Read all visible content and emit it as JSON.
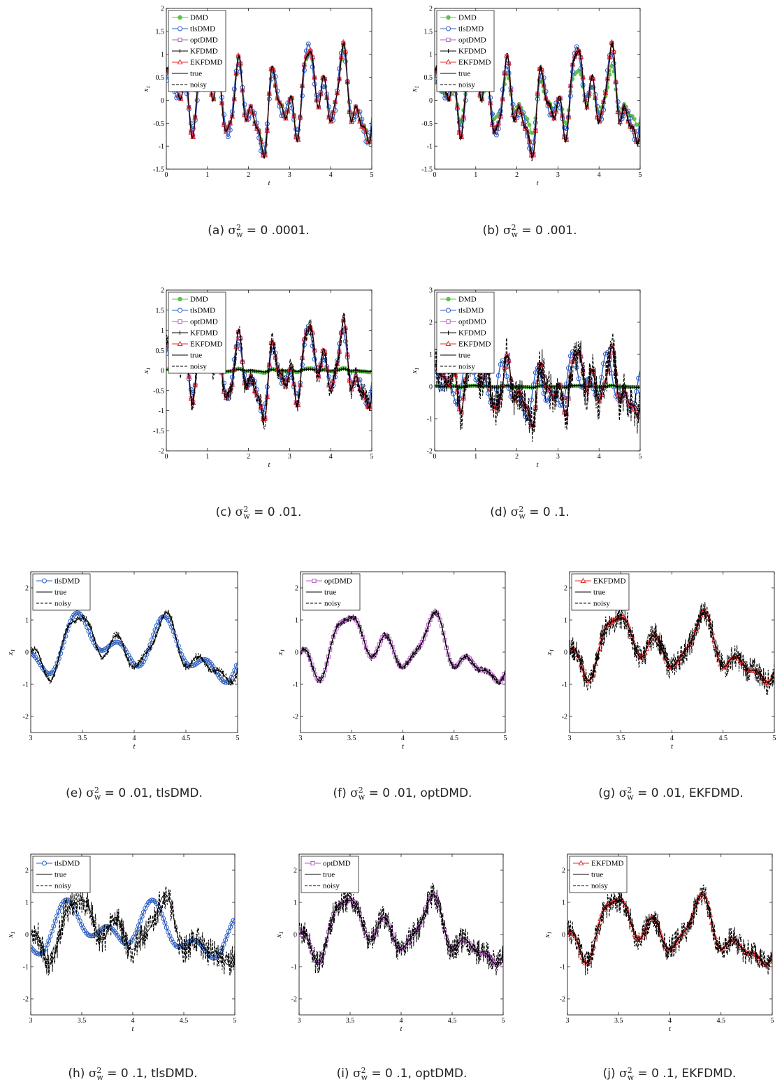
{
  "colors": {
    "DMD": "#5cc24a",
    "tlsDMD": "#2e5fbf",
    "optDMD": "#b05cc0",
    "KFDMD": "#000000",
    "EKFDMD": "#e52b2b",
    "true": "#000000",
    "noisy": "#000000"
  },
  "legend_labels": {
    "DMD": "DMD",
    "tlsDMD": "tlsDMD",
    "optDMD": "optDMD",
    "KFDMD": "KFDMD",
    "EKFDMD": "EKFDMD",
    "true": "true",
    "noisy": "noisy"
  },
  "chart_data": [
    {
      "id": "a",
      "type": "line",
      "caption": {
        "prefix": "(a) ",
        "value": " = 0 .0001.",
        "suffix": ""
      },
      "xlabel": "t",
      "ylabel": "x1",
      "xlim": [
        0,
        5
      ],
      "ylim": [
        -1.5,
        2
      ],
      "xticks": [
        0,
        1,
        2,
        3,
        4,
        5
      ],
      "yticks": [
        -1.5,
        -1,
        -0.5,
        0,
        0.5,
        1,
        1.5,
        2
      ],
      "legend": [
        "DMD",
        "tlsDMD",
        "optDMD",
        "KFDMD",
        "EKFDMD",
        "true",
        "noisy"
      ],
      "legend_position": "top-left",
      "noise": 0.03,
      "dmd_amp": 0.95,
      "tls_amp": 1.0,
      "tls_phase": 0
    },
    {
      "id": "b",
      "type": "line",
      "caption": {
        "prefix": "(b) ",
        "value": " = 0 .001.",
        "suffix": ""
      },
      "xlabel": "t",
      "ylabel": "x1",
      "xlim": [
        0,
        5
      ],
      "ylim": [
        -1.5,
        2
      ],
      "xticks": [
        0,
        1,
        2,
        3,
        4,
        5
      ],
      "yticks": [
        -1.5,
        -1,
        -0.5,
        0,
        0.5,
        1,
        1.5,
        2
      ],
      "legend": [
        "DMD",
        "tlsDMD",
        "optDMD",
        "KFDMD",
        "EKFDMD",
        "true",
        "noisy"
      ],
      "legend_position": "top-left",
      "noise": 0.1,
      "dmd_amp": 0.6,
      "tls_amp": 0.95,
      "tls_phase": 0
    },
    {
      "id": "c",
      "type": "line",
      "caption": {
        "prefix": "(c) ",
        "value": " = 0 .01.",
        "suffix": ""
      },
      "xlabel": "t",
      "ylabel": "x1",
      "xlim": [
        0,
        5
      ],
      "ylim": [
        -2,
        2
      ],
      "xticks": [
        0,
        1,
        2,
        3,
        4,
        5
      ],
      "yticks": [
        -2,
        -1.5,
        -1,
        -0.5,
        0,
        0.5,
        1,
        1.5,
        2
      ],
      "legend": [
        "DMD",
        "tlsDMD",
        "optDMD",
        "KFDMD",
        "EKFDMD",
        "true",
        "noisy"
      ],
      "legend_position": "top-left",
      "noise": 0.25,
      "dmd_amp": 0.05,
      "tls_amp": 0.9,
      "tls_phase": 0.05
    },
    {
      "id": "d",
      "type": "line",
      "caption": {
        "prefix": "(d) ",
        "value": " = 0 .1.",
        "suffix": ""
      },
      "xlabel": "t",
      "ylabel": "x1",
      "xlim": [
        0,
        5
      ],
      "ylim": [
        -2,
        3
      ],
      "xticks": [
        0,
        1,
        2,
        3,
        4,
        5
      ],
      "yticks": [
        -2,
        -1,
        0,
        1,
        2,
        3
      ],
      "legend": [
        "DMD",
        "tlsDMD",
        "optDMD",
        "KFDMD",
        "EKFDMD",
        "true",
        "noisy"
      ],
      "legend_position": "top-left",
      "noise": 0.6,
      "dmd_amp": 0.02,
      "tls_amp": 0.9,
      "tls_phase": 0.9
    },
    {
      "id": "e",
      "type": "line",
      "caption": {
        "prefix": "(e) ",
        "value": " = 0 .01, tlsDMD.",
        "suffix": ""
      },
      "xlabel": "t",
      "ylabel": "x1",
      "xlim": [
        3,
        5
      ],
      "ylim": [
        -2.5,
        2.5
      ],
      "xticks": [
        3,
        3.5,
        4,
        4.5,
        5
      ],
      "yticks": [
        -2,
        -1,
        0,
        1,
        2
      ],
      "legend": [
        "tlsDMD",
        "true",
        "noisy"
      ],
      "legend_position": "top-left",
      "noise": 0.12,
      "tls_amp": 1.0,
      "tls_phase": 0.05
    },
    {
      "id": "f",
      "type": "line",
      "caption": {
        "prefix": "(f) ",
        "value": " = 0 .01, optDMD.",
        "suffix": ""
      },
      "xlabel": "t",
      "ylabel": "x1",
      "xlim": [
        3,
        5
      ],
      "ylim": [
        -2.5,
        2.5
      ],
      "xticks": [
        3,
        3.5,
        4,
        4.5,
        5
      ],
      "yticks": [
        -2,
        -1,
        0,
        1,
        2
      ],
      "legend": [
        "optDMD",
        "true",
        "noisy"
      ],
      "legend_position": "top-left",
      "noise": 0.12
    },
    {
      "id": "g",
      "type": "line",
      "caption": {
        "prefix": "(g) ",
        "value": " = 0 .01, EKFDMD.",
        "suffix": ""
      },
      "xlabel": "t",
      "ylabel": "x1",
      "xlim": [
        3,
        5
      ],
      "ylim": [
        -2.5,
        2.5
      ],
      "xticks": [
        3,
        3.5,
        4,
        4.5,
        5
      ],
      "yticks": [
        -2,
        -1,
        0,
        1,
        2
      ],
      "legend": [
        "EKFDMD",
        "true",
        "noisy"
      ],
      "legend_position": "top-left",
      "noise": 0.4
    },
    {
      "id": "h",
      "type": "line",
      "caption": {
        "prefix": "(h) ",
        "value": " = 0 .1, tlsDMD.",
        "suffix": ""
      },
      "xlabel": "t",
      "ylabel": "x1",
      "xlim": [
        3,
        5
      ],
      "ylim": [
        -2.5,
        2.5
      ],
      "xticks": [
        3,
        3.5,
        4,
        4.5,
        5
      ],
      "yticks": [
        -2,
        -1,
        0,
        1,
        2
      ],
      "legend": [
        "tlsDMD",
        "true",
        "noisy"
      ],
      "legend_position": "top-left",
      "noise": 0.45,
      "tls_amp": 0.9,
      "tls_phase": 0.9
    },
    {
      "id": "i",
      "type": "line",
      "caption": {
        "prefix": "(i) ",
        "value": " = 0 .1, optDMD.",
        "suffix": ""
      },
      "xlabel": "t",
      "ylabel": "x1",
      "xlim": [
        3,
        5
      ],
      "ylim": [
        -2.5,
        2.5
      ],
      "xticks": [
        3,
        3.5,
        4,
        4.5,
        5
      ],
      "yticks": [
        -2,
        -1,
        0,
        1,
        2
      ],
      "legend": [
        "optDMD",
        "true",
        "noisy"
      ],
      "legend_position": "top-left",
      "noise": 0.4
    },
    {
      "id": "j",
      "type": "line",
      "caption": {
        "prefix": "(j) ",
        "value": " = 0 .1, EKFDMD.",
        "suffix": ""
      },
      "xlabel": "t",
      "ylabel": "x1",
      "xlim": [
        3,
        5
      ],
      "ylim": [
        -2.5,
        2.5
      ],
      "xticks": [
        3,
        3.5,
        4,
        4.5,
        5
      ],
      "yticks": [
        -2,
        -1,
        0,
        1,
        2
      ],
      "legend": [
        "EKFDMD",
        "true",
        "noisy"
      ],
      "legend_position": "top-left",
      "noise": 0.4
    }
  ]
}
